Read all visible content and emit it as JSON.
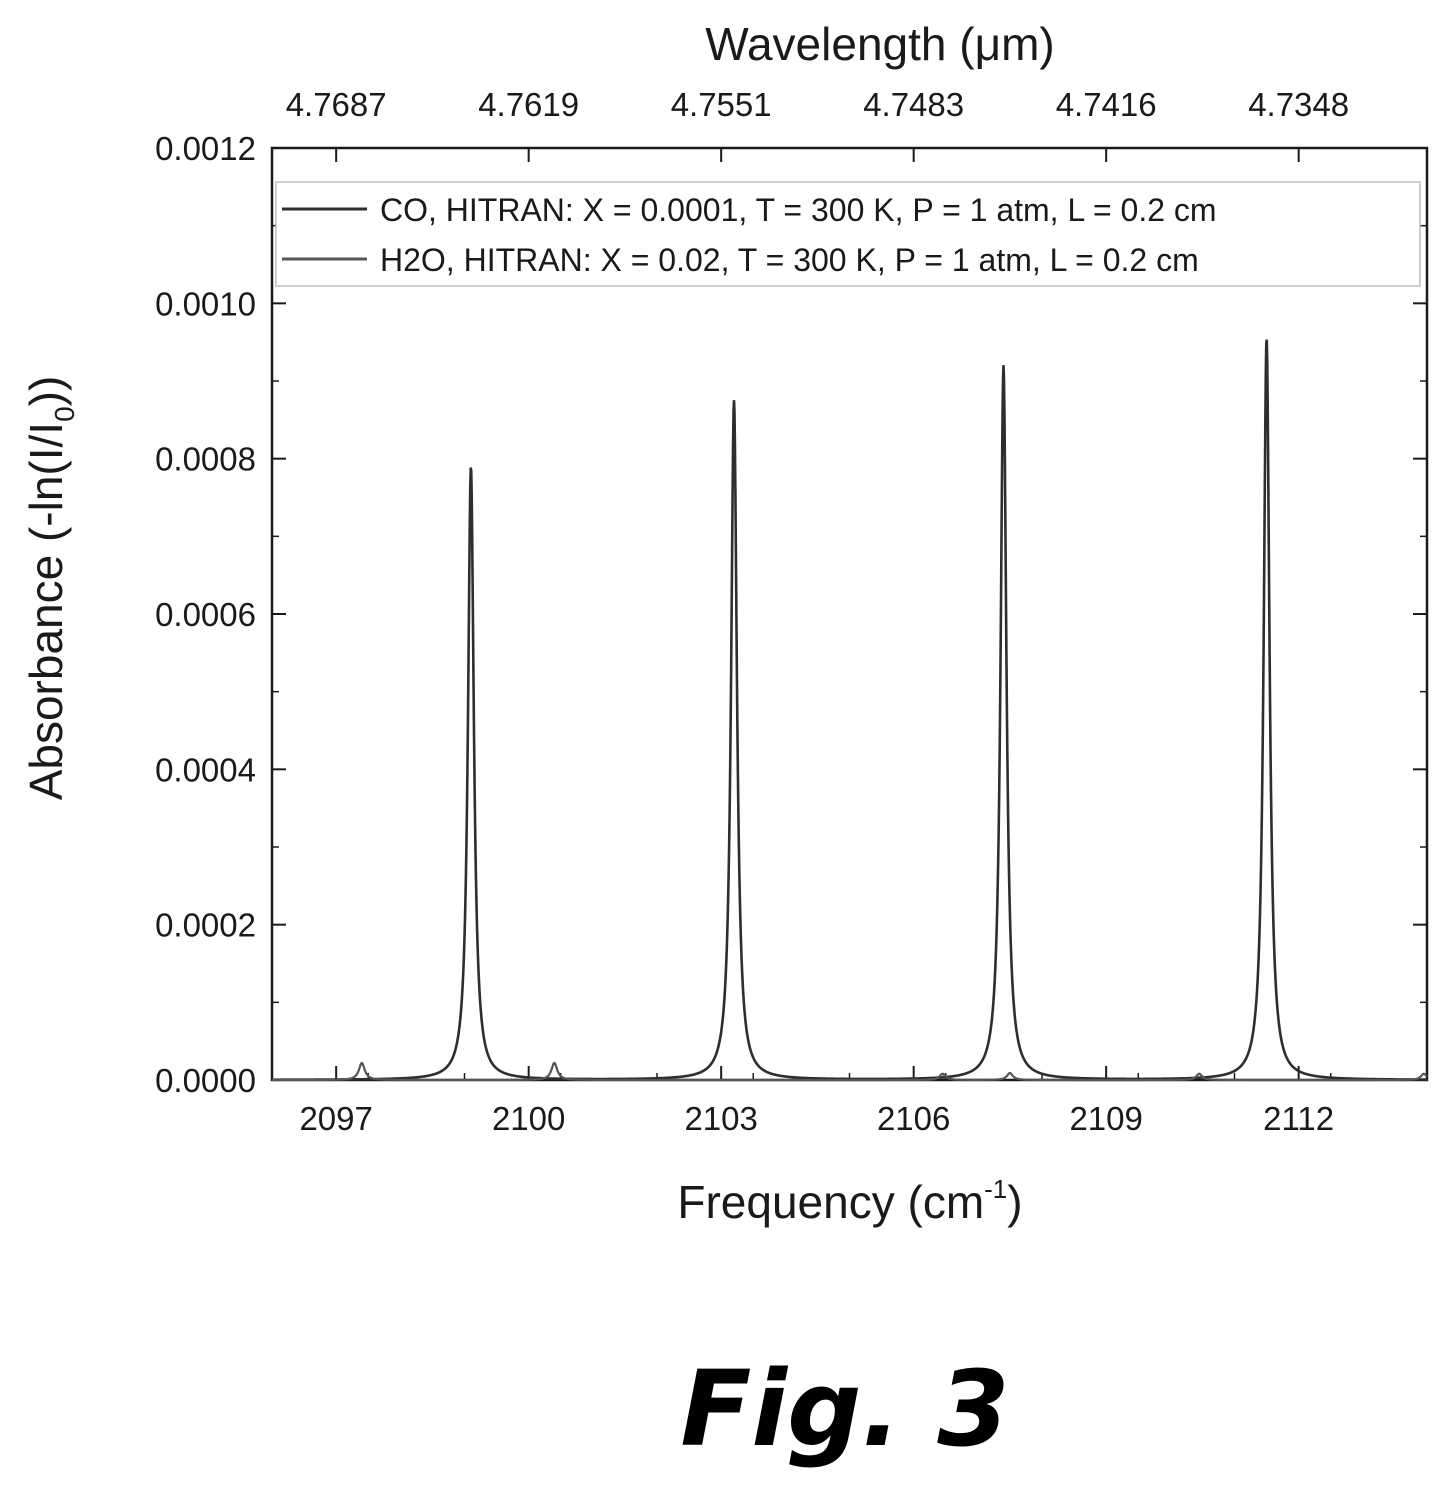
{
  "chart_data": {
    "type": "line",
    "xlabel": "Frequency (cm",
    "xlabel_sup": "-1",
    "xlabel_end": ")",
    "ylabel": "Absorbance (-ln(I/I",
    "ylabel_sub": "0",
    "ylabel_end": "))",
    "top_xlabel": "Wavelength (μm)",
    "xlim": [
      2096.0,
      2114.0
    ],
    "ylim": [
      0,
      0.0012
    ],
    "x_ticks": [
      "2097",
      "2100",
      "2103",
      "2106",
      "2109",
      "2112"
    ],
    "y_ticks": [
      "0.0000",
      "0.0002",
      "0.0004",
      "0.0006",
      "0.0008",
      "0.0010",
      "0.0012"
    ],
    "top_ticks": [
      "4.7687",
      "4.7619",
      "4.7551",
      "4.7483",
      "4.7416",
      "4.7348"
    ],
    "legend_position": "top",
    "series": [
      {
        "name": "CO, HITRAN: X = 0.0001, T = 300 K, P = 1 atm, L = 0.2 cm",
        "color": "#2e2e2e",
        "peaks": [
          {
            "center": 2099.1,
            "height": 0.00079
          },
          {
            "center": 2103.2,
            "height": 0.000875
          },
          {
            "center": 2107.4,
            "height": 0.00092
          },
          {
            "center": 2111.5,
            "height": 0.000955
          }
        ]
      },
      {
        "name": "H2O, HITRAN: X = 0.02, T = 300 K, P = 1 atm, L = 0.2 cm",
        "color": "#555555",
        "peaks": [
          {
            "center": 2097.4,
            "height": 2.2e-05
          },
          {
            "center": 2100.4,
            "height": 2.2e-05
          },
          {
            "center": 2106.45,
            "height": 8e-06
          },
          {
            "center": 2107.5,
            "height": 9e-06
          },
          {
            "center": 2110.45,
            "height": 8e-06
          },
          {
            "center": 2113.95,
            "height": 8e-06
          }
        ]
      }
    ]
  },
  "figure_label": "Fig. 3"
}
